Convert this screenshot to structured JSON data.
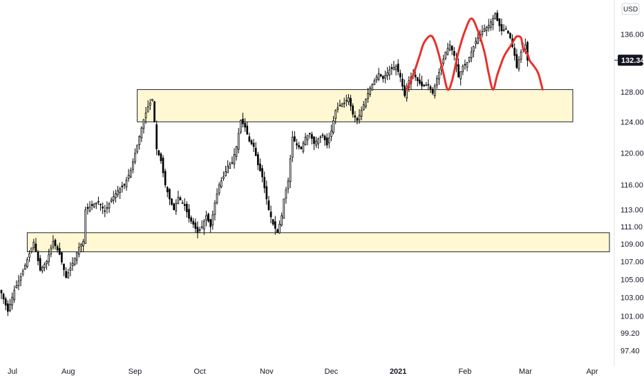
{
  "chart_data": {
    "type": "candlestick",
    "currency": "USD",
    "last_price": "132.34",
    "last_price_value": 132.34,
    "y_tick_labels": [
      "136.00",
      "132.00",
      "128.00",
      "124.00",
      "120.00",
      "116.00",
      "113.00",
      "111.00",
      "109.00",
      "107.00",
      "105.00",
      "103.00",
      "101.00",
      "99.20",
      "97.40"
    ],
    "y_ticks": [
      136,
      132,
      128,
      124,
      120,
      116,
      113,
      111,
      109,
      107,
      105,
      103,
      101,
      99.2,
      97.4
    ],
    "y_scale": "log",
    "ylim": [
      96.5,
      140
    ],
    "x_labels": [
      {
        "text": "Jul",
        "day": 0,
        "bold": false
      },
      {
        "text": "Aug",
        "day": 31,
        "bold": false
      },
      {
        "text": "Sep",
        "day": 62,
        "bold": false
      },
      {
        "text": "Oct",
        "day": 92,
        "bold": false
      },
      {
        "text": "Nov",
        "day": 123,
        "bold": false
      },
      {
        "text": "Dec",
        "day": 153,
        "bold": false
      },
      {
        "text": "2021",
        "day": 184,
        "bold": true
      },
      {
        "text": "Feb",
        "day": 215,
        "bold": false
      },
      {
        "text": "Mar",
        "day": 243,
        "bold": false
      },
      {
        "text": "Apr",
        "day": 274,
        "bold": false
      }
    ],
    "xlim": [
      0,
      282
    ],
    "anchors": [
      [
        0,
        103.5
      ],
      [
        3,
        101.5
      ],
      [
        6,
        103.8
      ],
      [
        9,
        105.3
      ],
      [
        12,
        107.2
      ],
      [
        15,
        109.2
      ],
      [
        18,
        106.0
      ],
      [
        21,
        107.0
      ],
      [
        24,
        109.3
      ],
      [
        27,
        107.8
      ],
      [
        30,
        105.2
      ],
      [
        33,
        106.8
      ],
      [
        36,
        108.6
      ],
      [
        38,
        109.3
      ],
      [
        39,
        113.0
      ],
      [
        42,
        113.5
      ],
      [
        45,
        114.0
      ],
      [
        48,
        112.8
      ],
      [
        51,
        114.2
      ],
      [
        54,
        115.3
      ],
      [
        57,
        116.0
      ],
      [
        60,
        117.8
      ],
      [
        63,
        121.0
      ],
      [
        66,
        124.3
      ],
      [
        68,
        126.0
      ],
      [
        70,
        127.0
      ],
      [
        71,
        124.0
      ],
      [
        72,
        120.5
      ],
      [
        74,
        119.0
      ],
      [
        76,
        116.0
      ],
      [
        78,
        114.3
      ],
      [
        80,
        113.0
      ],
      [
        82,
        114.5
      ],
      [
        85,
        113.5
      ],
      [
        87,
        112.0
      ],
      [
        89,
        111.3
      ],
      [
        91,
        110.3
      ],
      [
        93,
        111.0
      ],
      [
        95,
        112.3
      ],
      [
        97,
        111.0
      ],
      [
        99,
        113.8
      ],
      [
        101,
        116.0
      ],
      [
        103,
        117.0
      ],
      [
        105,
        118.3
      ],
      [
        107,
        118.8
      ],
      [
        109,
        120.8
      ],
      [
        111,
        124.2
      ],
      [
        113,
        123.3
      ],
      [
        115,
        121.5
      ],
      [
        117,
        120.8
      ],
      [
        119,
        118.5
      ],
      [
        121,
        117.0
      ],
      [
        123,
        114.3
      ],
      [
        124,
        113.0
      ],
      [
        126,
        111.3
      ],
      [
        128,
        110.3
      ],
      [
        130,
        112.3
      ],
      [
        131,
        114.3
      ],
      [
        133,
        116.5
      ],
      [
        135,
        122.0
      ],
      [
        137,
        121.0
      ],
      [
        139,
        120.5
      ],
      [
        141,
        122.0
      ],
      [
        143,
        122.5
      ],
      [
        145,
        121.2
      ],
      [
        147,
        121.8
      ],
      [
        149,
        122.3
      ],
      [
        151,
        121.0
      ],
      [
        153,
        122.8
      ],
      [
        155,
        125.5
      ],
      [
        157,
        126.2
      ],
      [
        159,
        126.5
      ],
      [
        161,
        127.2
      ],
      [
        163,
        125.0
      ],
      [
        165,
        124.2
      ],
      [
        167,
        125.5
      ],
      [
        169,
        127.0
      ],
      [
        171,
        128.5
      ],
      [
        173,
        129.5
      ],
      [
        175,
        130.5
      ],
      [
        177,
        129.8
      ],
      [
        180,
        131.0
      ],
      [
        183,
        131.5
      ],
      [
        185,
        130.0
      ],
      [
        187,
        127.5
      ],
      [
        189,
        129.5
      ],
      [
        191,
        130.5
      ],
      [
        193,
        129.5
      ],
      [
        195,
        128.8
      ],
      [
        198,
        129.0
      ],
      [
        200,
        127.8
      ],
      [
        202,
        129.8
      ],
      [
        204,
        131.5
      ],
      [
        206,
        133.5
      ],
      [
        208,
        134.5
      ],
      [
        210,
        133.0
      ],
      [
        212,
        130.0
      ],
      [
        214,
        131.5
      ],
      [
        216,
        132.0
      ],
      [
        218,
        133.5
      ],
      [
        220,
        135.0
      ],
      [
        222,
        136.0
      ],
      [
        224,
        136.8
      ],
      [
        226,
        137.3
      ],
      [
        228,
        138.3
      ],
      [
        229,
        139.0
      ],
      [
        230,
        138.0
      ],
      [
        232,
        136.5
      ],
      [
        234,
        136.8
      ],
      [
        236,
        135.5
      ],
      [
        238,
        133.0
      ],
      [
        239,
        131.3
      ],
      [
        241,
        133.5
      ],
      [
        243,
        134.5
      ],
      [
        244,
        132.34
      ]
    ],
    "zones": [
      {
        "day_start": 63,
        "day_end": 265,
        "price_low": 124.0,
        "price_high": 128.3
      },
      {
        "day_start": 12,
        "day_end": 282,
        "price_low": 108.1,
        "price_high": 110.3
      }
    ],
    "pattern_line": [
      [
        188,
        128.3
      ],
      [
        191,
        130.3
      ],
      [
        194,
        133.0
      ],
      [
        196,
        134.8
      ],
      [
        199,
        135.8
      ],
      [
        201,
        135.0
      ],
      [
        203,
        133.0
      ],
      [
        205,
        130.5
      ],
      [
        207,
        128.3
      ],
      [
        209,
        129.5
      ],
      [
        212,
        133.5
      ],
      [
        215,
        136.5
      ],
      [
        218,
        138.3
      ],
      [
        221,
        136.5
      ],
      [
        224,
        133.5
      ],
      [
        226,
        130.5
      ],
      [
        228,
        128.3
      ],
      [
        230,
        130.3
      ],
      [
        233,
        132.8
      ],
      [
        236,
        134.3
      ],
      [
        238,
        135.3
      ],
      [
        239,
        135.7
      ],
      [
        241,
        135.5
      ],
      [
        242,
        134.0
      ],
      [
        244,
        133.2
      ],
      [
        245,
        132.3
      ],
      [
        247,
        131.5
      ],
      [
        249,
        130.5
      ],
      [
        251,
        128.3
      ]
    ]
  }
}
